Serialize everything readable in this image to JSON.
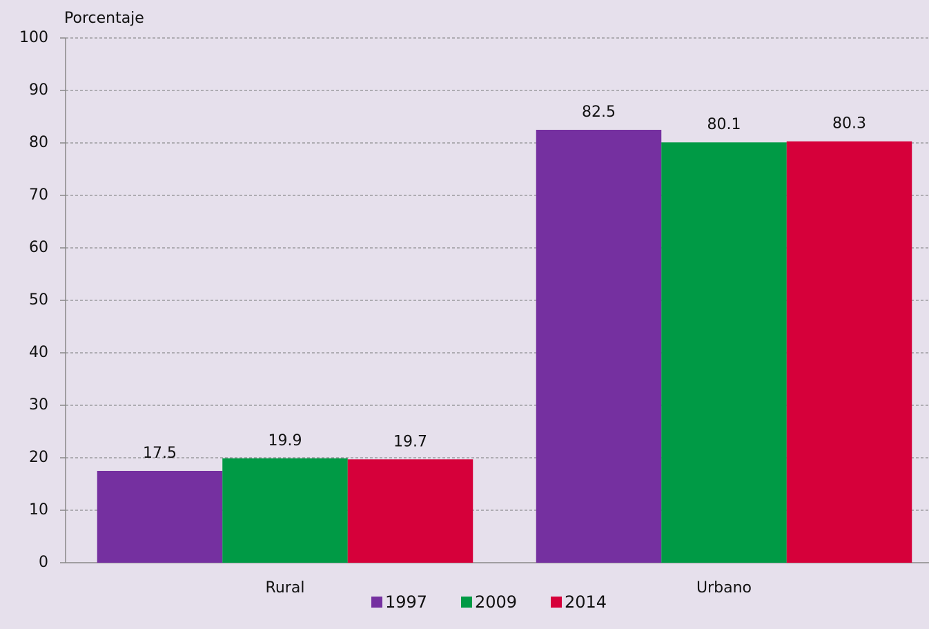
{
  "chart_data": {
    "type": "bar",
    "y_label": "Porcentaje",
    "categories": [
      "Rural",
      "Urbano"
    ],
    "series": [
      {
        "name": "1997",
        "color": "#7530a0",
        "values": [
          17.5,
          82.5
        ]
      },
      {
        "name": "2009",
        "color": "#009a45",
        "values": [
          19.9,
          80.1
        ]
      },
      {
        "name": "2014",
        "color": "#d6003a",
        "values": [
          19.7,
          80.3
        ]
      }
    ],
    "ylim": [
      0,
      100
    ],
    "yticks": [
      0,
      10,
      20,
      30,
      40,
      50,
      60,
      70,
      80,
      90,
      100
    ],
    "grid": true,
    "legend": "bottom"
  }
}
